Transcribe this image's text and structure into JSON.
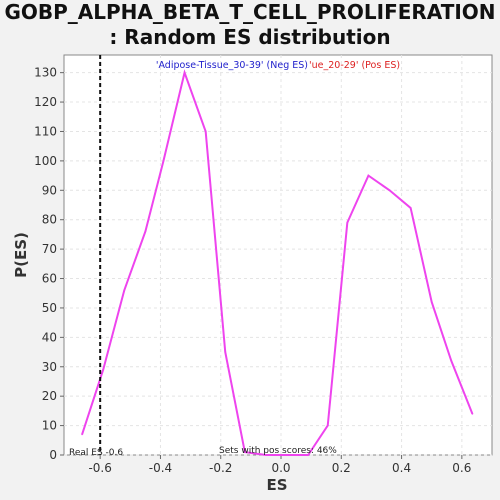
{
  "title_line1": "GOBP_ALPHA_BETA_T_CELL_PROLIFERATION",
  "title_line2": ": Random ES distribution",
  "chart_data": {
    "type": "line",
    "title": "GOBP_ALPHA_BETA_T_CELL_PROLIFERATION : Random ES distribution",
    "xlabel": "ES",
    "ylabel": "P(ES)",
    "xlim": [
      -0.72,
      0.7
    ],
    "ylim": [
      0,
      136
    ],
    "xticks": [
      -0.6,
      -0.4,
      -0.2,
      0.0,
      0.2,
      0.4,
      0.6
    ],
    "xtick_labels": [
      "-0.6",
      "-0.4",
      "-0.2",
      "0.0",
      "0.2",
      "0.4",
      "0.6"
    ],
    "yticks": [
      0,
      10,
      20,
      30,
      40,
      50,
      60,
      70,
      80,
      90,
      100,
      110,
      120,
      130
    ],
    "ytick_labels": [
      "0",
      "10",
      "20",
      "30",
      "40",
      "50",
      "60",
      "70",
      "80",
      "90",
      "100",
      "110",
      "120",
      "130"
    ],
    "grid": true,
    "series": [
      {
        "color": "#ee44ee",
        "x": [
          -0.66,
          -0.59,
          -0.52,
          -0.45,
          -0.39,
          -0.32,
          -0.25,
          -0.185,
          -0.12,
          -0.05,
          0.02,
          0.09,
          0.155,
          0.22,
          0.29,
          0.36,
          0.43,
          0.5,
          0.565,
          0.635
        ],
        "y": [
          7,
          29,
          56,
          76,
          100,
          130,
          110,
          35,
          1,
          0,
          0,
          0,
          10,
          79,
          95,
          90,
          84,
          52,
          32,
          14
        ]
      }
    ],
    "real_es": -0.6,
    "annotations": {
      "neg_label": "'Adipose-Tissue_30-39' (Neg ES)",
      "pos_label": "'ue_20-29' (Pos ES)",
      "real_es_label": "Real ES -0.6",
      "pos_scores_label": "Sets with pos scores: 46%"
    },
    "colors": {
      "neg": "#2222cc",
      "pos": "#dd2222",
      "line": "#ee44ee"
    }
  }
}
